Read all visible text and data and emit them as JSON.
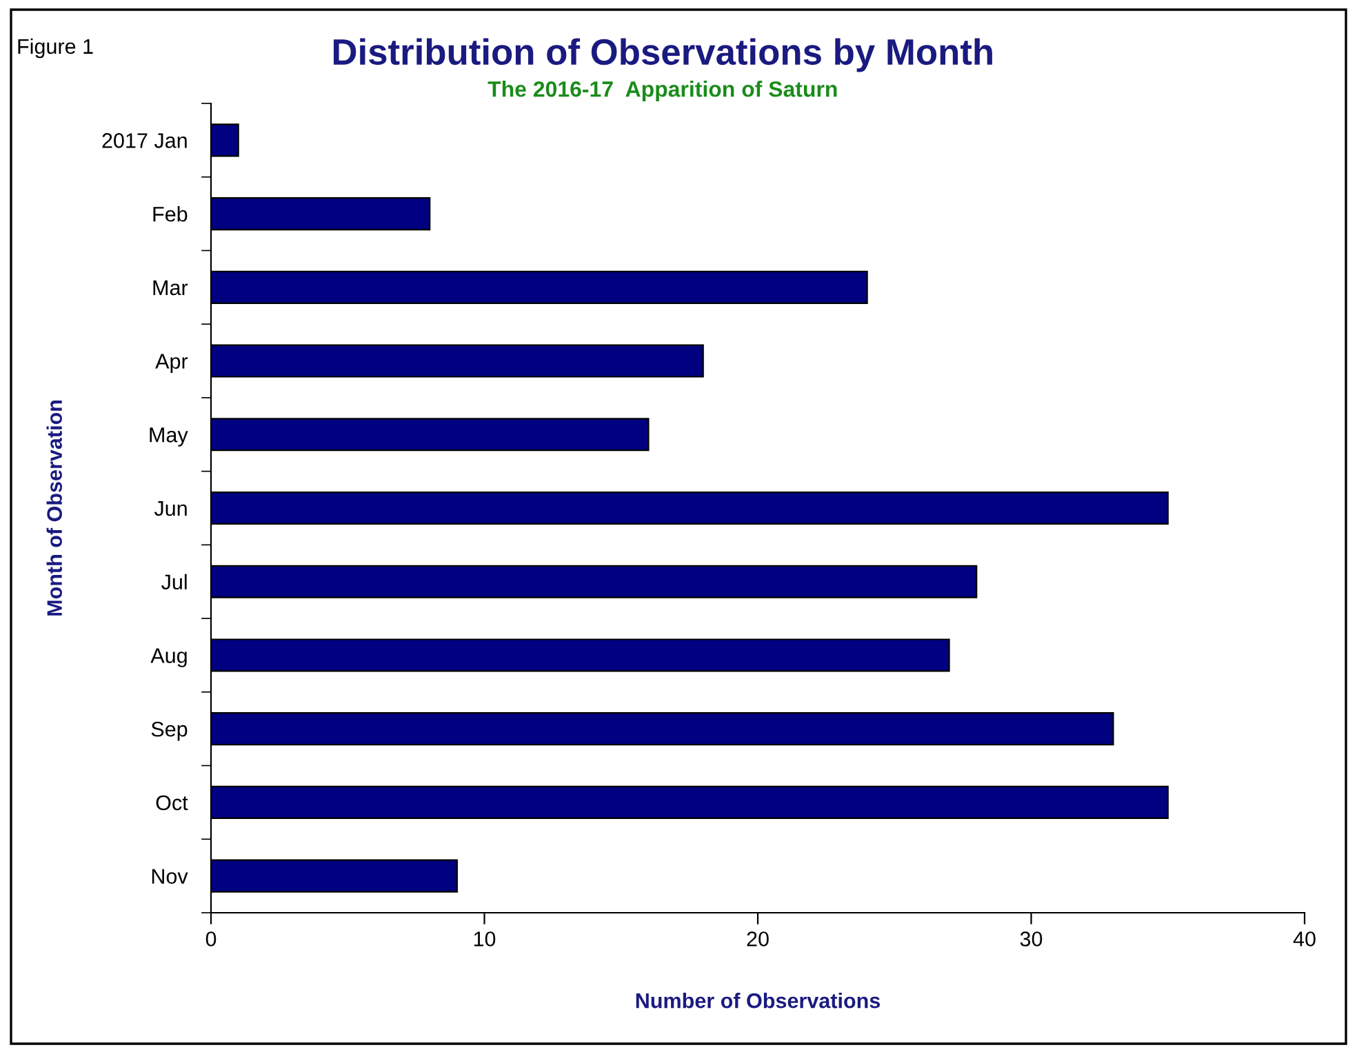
{
  "chart_data": {
    "type": "bar",
    "orientation": "horizontal",
    "title": "Distribution of Observations by Month",
    "subtitle": "The 2016-17  Apparition of Saturn",
    "xlabel": "Number of Observations",
    "ylabel": "Month of Observation",
    "annotations": [
      "Figure 1"
    ],
    "categories": [
      "2017 Jan",
      "Feb",
      "Mar",
      "Apr",
      "May",
      "Jun",
      "Jul",
      "Aug",
      "Sep",
      "Oct",
      "Nov"
    ],
    "values": [
      1,
      8,
      24,
      18,
      16,
      35,
      28,
      27,
      33,
      35,
      9
    ],
    "color": "#000080",
    "xlim": [
      0,
      40
    ],
    "xticks": [
      0,
      10,
      20,
      30,
      40
    ],
    "grid": false,
    "legend": false
  }
}
